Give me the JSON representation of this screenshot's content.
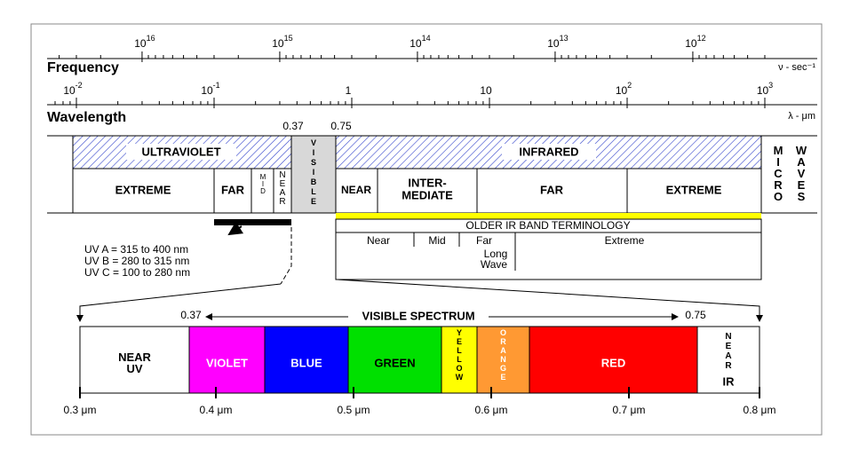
{
  "frequency_axis": {
    "title": "Frequency",
    "unit": "ν - sec⁻¹",
    "ticks": [
      {
        "base": "10",
        "exp": "16"
      },
      {
        "base": "10",
        "exp": "15"
      },
      {
        "base": "10",
        "exp": "14"
      },
      {
        "base": "10",
        "exp": "13"
      },
      {
        "base": "10",
        "exp": "12"
      }
    ]
  },
  "wavelength_axis": {
    "title": "Wavelength",
    "unit": "λ - μm",
    "ticks": [
      {
        "base": "10",
        "exp": "-2"
      },
      {
        "base": "10",
        "exp": "-1"
      },
      {
        "base": "1"
      },
      {
        "base": "10"
      },
      {
        "base": "10",
        "exp": "2"
      },
      {
        "base": "10",
        "exp": "3"
      }
    ]
  },
  "visible_bounds": [
    "0.37",
    "0.75"
  ],
  "bands": {
    "ultraviolet": "ULTRAVIOLET",
    "visible": "VISIBLE",
    "infrared": "INFRARED",
    "micro": "MICRO",
    "waves": "WAVES"
  },
  "uv_subbands": [
    "EXTREME",
    "FAR",
    "MID",
    "NEAR"
  ],
  "ir_subbands": [
    [
      "NEAR"
    ],
    [
      "INTER-",
      "MEDIATE"
    ],
    [
      "FAR"
    ],
    [
      "EXTREME"
    ]
  ],
  "uv_types": [
    "UV A = 315 to 400 nm",
    "UV B = 280 to 315 nm",
    "UV C = 100 to 280 nm"
  ],
  "older_ir": {
    "title": "OLDER IR BAND TERMINOLOGY",
    "bands": [
      [
        "Near"
      ],
      [
        "Mid"
      ],
      [
        "Far",
        "Long",
        "Wave"
      ],
      [
        "Extreme"
      ]
    ]
  },
  "visible_spectrum": {
    "title": "VISIBLE SPECTRUM",
    "start": "0.37",
    "end": "0.75",
    "segments": [
      {
        "label": [
          "NEAR",
          "UV"
        ],
        "color": "#ffffff"
      },
      {
        "label": [
          "VIOLET"
        ],
        "color": "#ff00ff"
      },
      {
        "label": [
          "BLUE"
        ],
        "color": "#0000ff"
      },
      {
        "label": [
          "GREEN"
        ],
        "color": "#00e000"
      },
      {
        "label": [
          "YELLOW"
        ],
        "color": "#ffff00"
      },
      {
        "label": [
          "ORANGE"
        ],
        "color": "#ff9933"
      },
      {
        "label": [
          "RED"
        ],
        "color": "#ff0000"
      },
      {
        "label": [
          "NEAR",
          "IR"
        ],
        "color": "#ffffff"
      }
    ],
    "scale": [
      "0.3 μm",
      "0.4 μm",
      "0.5 μm",
      "0.6 μm",
      "0.7 μm",
      "0.8 μm"
    ]
  }
}
